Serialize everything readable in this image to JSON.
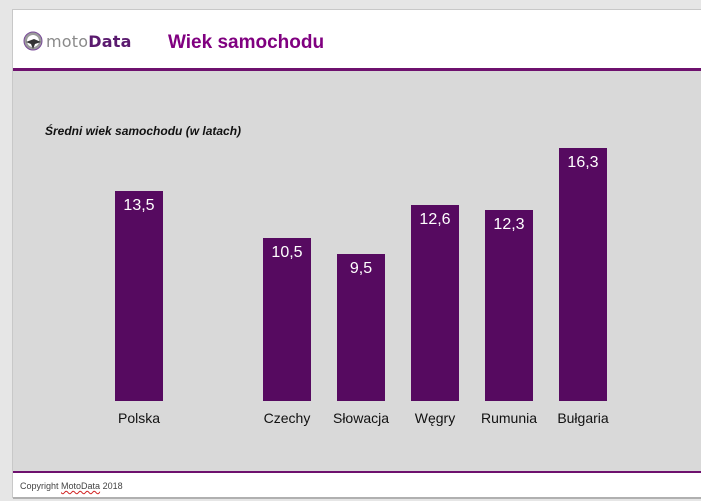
{
  "header": {
    "logo_text_a": "moto",
    "logo_text_b": "Data",
    "title": "Wiek samochodu"
  },
  "footer": {
    "copyright_a": "Copyright ",
    "copyright_b": "MotoData",
    "copyright_c": " 2018"
  },
  "colors": {
    "accent": "#800080",
    "bar": "#560a60",
    "background": "#d9d9d9"
  },
  "chart_data": {
    "type": "bar",
    "title": "Średni wiek samochodu (w latach)",
    "xlabel": "",
    "ylabel": "",
    "ylim": [
      0,
      16.3
    ],
    "grid": false,
    "categories": [
      "Polska",
      "Czechy",
      "Słowacja",
      "Węgry",
      "Rumunia",
      "Bułgaria"
    ],
    "values": [
      13.5,
      10.5,
      9.5,
      12.6,
      12.3,
      16.3
    ],
    "value_labels": [
      "13,5",
      "10,5",
      "9,5",
      "12,6",
      "12,3",
      "16,3"
    ]
  }
}
